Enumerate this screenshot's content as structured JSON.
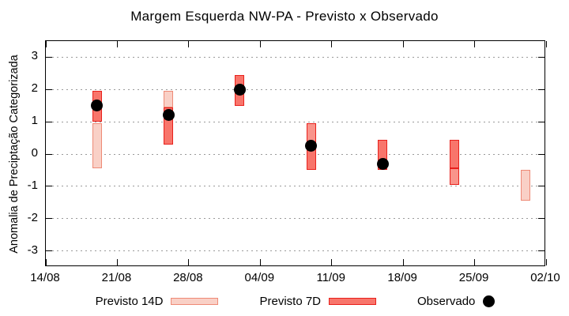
{
  "chart_data": {
    "type": "bar",
    "subtype": "range-boxes-with-observed-points",
    "title": "Margem Esquerda NW-PA - Previsto x Observado",
    "xlabel": "",
    "ylabel": "Anomalia de Preciptação Categorizada",
    "ylim": [
      -3.5,
      3.5
    ],
    "xlim_days": [
      0,
      49
    ],
    "grid": "horizontal-dotted",
    "legend_position": "bottom-center",
    "y_ticks": [
      {
        "value": 3,
        "label": "3"
      },
      {
        "value": 2,
        "label": "2"
      },
      {
        "value": 1,
        "label": "1"
      },
      {
        "value": 0,
        "label": "0"
      },
      {
        "value": -1,
        "label": "-1"
      },
      {
        "value": -2,
        "label": "-2"
      },
      {
        "value": -3,
        "label": "-3"
      }
    ],
    "x_ticks": [
      {
        "day": 0,
        "label": "14/08"
      },
      {
        "day": 7,
        "label": "21/08"
      },
      {
        "day": 14,
        "label": "28/08"
      },
      {
        "day": 21,
        "label": "04/09"
      },
      {
        "day": 28,
        "label": "11/09"
      },
      {
        "day": 35,
        "label": "18/09"
      },
      {
        "day": 42,
        "label": "25/09"
      },
      {
        "day": 49,
        "label": "02/10"
      }
    ],
    "series": [
      {
        "name": "Previsto 14D",
        "style": "light"
      },
      {
        "name": "Previsto 7D",
        "style": "dark"
      },
      {
        "name": "Observado",
        "style": "dot"
      }
    ],
    "bars": [
      {
        "date": "19/08",
        "day": 5,
        "segments": [
          {
            "hi": 1.95,
            "lo": 1.0,
            "style": "dark"
          },
          {
            "hi": 0.95,
            "lo": -0.45,
            "style": "light"
          }
        ],
        "observed": 1.5
      },
      {
        "date": "26/08",
        "day": 12,
        "segments": [
          {
            "hi": 1.95,
            "lo": 1.45,
            "style": "light"
          },
          {
            "hi": 1.45,
            "lo": 0.3,
            "style": "dark"
          }
        ],
        "observed": 1.2
      },
      {
        "date": "02/09",
        "day": 19,
        "segments": [
          {
            "hi": 2.45,
            "lo": 1.5,
            "style": "dark"
          }
        ],
        "observed": 2.0
      },
      {
        "date": "09/09",
        "day": 26,
        "segments": [
          {
            "hi": 0.95,
            "lo": 0.3,
            "style": "mid"
          },
          {
            "hi": 0.3,
            "lo": -0.5,
            "style": "dark"
          }
        ],
        "observed": 0.25
      },
      {
        "date": "16/09",
        "day": 33,
        "segments": [
          {
            "hi": 0.45,
            "lo": -0.5,
            "style": "dark"
          }
        ],
        "observed": -0.3
      },
      {
        "date": "23/09",
        "day": 40,
        "segments": [
          {
            "hi": 0.45,
            "lo": -0.45,
            "style": "dark"
          },
          {
            "hi": -0.45,
            "lo": -0.95,
            "style": "mid"
          }
        ],
        "observed": null
      },
      {
        "date": "30/09",
        "day": 47,
        "segments": [
          {
            "hi": -0.5,
            "lo": -1.45,
            "style": "light"
          }
        ],
        "observed": null
      }
    ],
    "colors": {
      "light_fill": "#f9d0c6",
      "light_border": "#ee8a76",
      "dark_fill": "#f8756b",
      "dark_border": "#e8211c",
      "mid_fill": "#f9948b",
      "observed": "#000000",
      "grid": "#9a9a9a",
      "border": "#000000",
      "background": "#ffffff"
    }
  }
}
